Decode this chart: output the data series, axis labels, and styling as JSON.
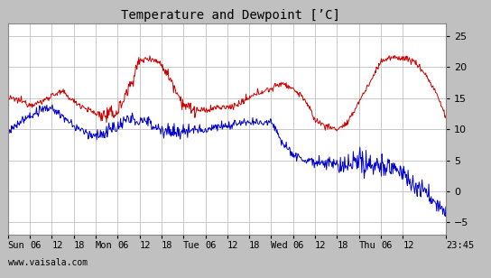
{
  "title": "Temperature and Dewpoint [’C]",
  "title_fontsize": 10,
  "ylim": [
    -7,
    27
  ],
  "yticks": [
    -5,
    0,
    5,
    10,
    15,
    20,
    25
  ],
  "background_color": "#c0c0c0",
  "plot_bg_color": "#ffffff",
  "grid_color": "#c0c0c0",
  "temp_color": "#cc0000",
  "dew_color": "#0000cc",
  "line_width": 0.7,
  "watermark": "www.vaisala.com",
  "x_tick_labels": [
    "Sun",
    "06",
    "12",
    "18",
    "Mon",
    "06",
    "12",
    "18",
    "Tue",
    "06",
    "12",
    "18",
    "Wed",
    "06",
    "12",
    "18",
    "Thu",
    "06",
    "12",
    "23:45"
  ],
  "x_tick_positions": [
    0,
    6,
    12,
    18,
    24,
    30,
    36,
    42,
    48,
    54,
    60,
    66,
    72,
    78,
    84,
    90,
    96,
    102,
    108,
    119.75
  ],
  "total_hours": 119.75,
  "num_points": 720,
  "temp_knots_x": [
    0,
    2,
    4,
    6,
    9,
    12,
    15,
    18,
    21,
    24,
    27,
    30,
    33,
    36,
    39,
    42,
    45,
    48,
    51,
    54,
    57,
    60,
    63,
    66,
    69,
    72,
    75,
    78,
    81,
    84,
    87,
    90,
    93,
    96,
    99,
    102,
    105,
    108,
    111,
    114,
    117,
    119.75
  ],
  "temp_knots_y": [
    15.0,
    14.8,
    14.5,
    14.0,
    14.3,
    15.5,
    16.0,
    14.5,
    13.5,
    12.5,
    12.2,
    12.8,
    16.5,
    21.0,
    21.5,
    20.5,
    17.5,
    14.0,
    13.0,
    13.0,
    13.5,
    13.5,
    14.0,
    15.0,
    16.0,
    16.5,
    17.5,
    16.5,
    15.0,
    11.5,
    10.5,
    10.0,
    11.0,
    14.5,
    17.5,
    21.0,
    21.5,
    21.5,
    21.0,
    19.0,
    16.0,
    12.0
  ],
  "dew_knots_x": [
    0,
    2,
    4,
    6,
    9,
    12,
    15,
    18,
    21,
    24,
    27,
    30,
    33,
    36,
    39,
    42,
    45,
    48,
    51,
    54,
    57,
    60,
    63,
    66,
    69,
    72,
    75,
    78,
    81,
    84,
    87,
    90,
    93,
    96,
    99,
    102,
    105,
    108,
    111,
    114,
    117,
    119.75
  ],
  "dew_knots_y": [
    9.5,
    10.5,
    11.5,
    12.0,
    13.0,
    13.5,
    12.0,
    10.5,
    9.5,
    9.0,
    9.5,
    10.5,
    11.5,
    11.5,
    11.0,
    10.0,
    9.5,
    9.5,
    10.0,
    10.0,
    10.5,
    10.5,
    11.0,
    11.0,
    11.0,
    11.5,
    8.0,
    6.0,
    5.0,
    5.0,
    4.5,
    4.0,
    4.0,
    4.5,
    4.5,
    4.0,
    4.0,
    3.0,
    1.0,
    0.0,
    -2.0,
    -3.5
  ]
}
